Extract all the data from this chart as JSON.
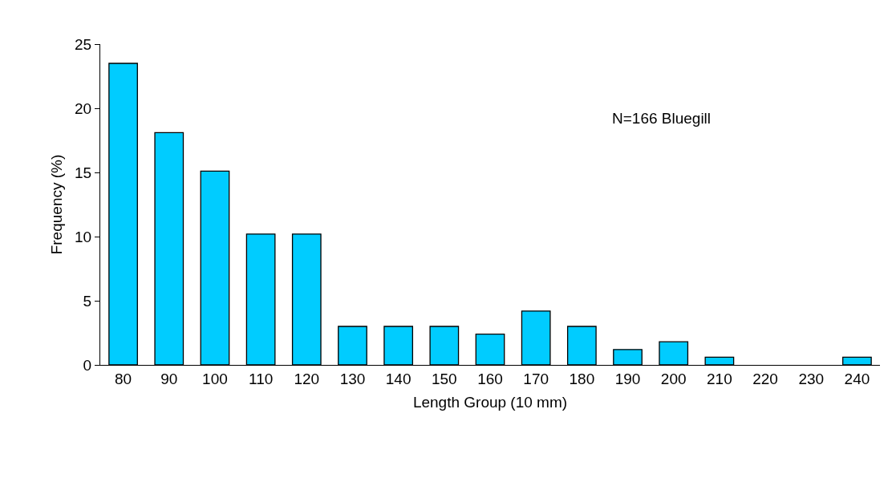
{
  "chart_data": {
    "type": "bar",
    "xlabel": "Length Group (10 mm)",
    "ylabel": "Frequency (%)",
    "categories": [
      "80",
      "90",
      "100",
      "110",
      "120",
      "130",
      "140",
      "150",
      "160",
      "170",
      "180",
      "190",
      "200",
      "210",
      "220",
      "230",
      "240"
    ],
    "values": [
      23.5,
      18.1,
      15.1,
      10.2,
      10.2,
      3.0,
      3.0,
      3.0,
      2.4,
      4.2,
      3.0,
      1.2,
      1.8,
      0.6,
      0,
      0,
      0.6
    ],
    "color": "#00ccff",
    "ylim": [
      0,
      25
    ],
    "yticks": [
      0,
      5,
      10,
      15,
      20,
      25
    ],
    "legend": false,
    "annotations": [
      "N=166 Bluegill"
    ]
  }
}
